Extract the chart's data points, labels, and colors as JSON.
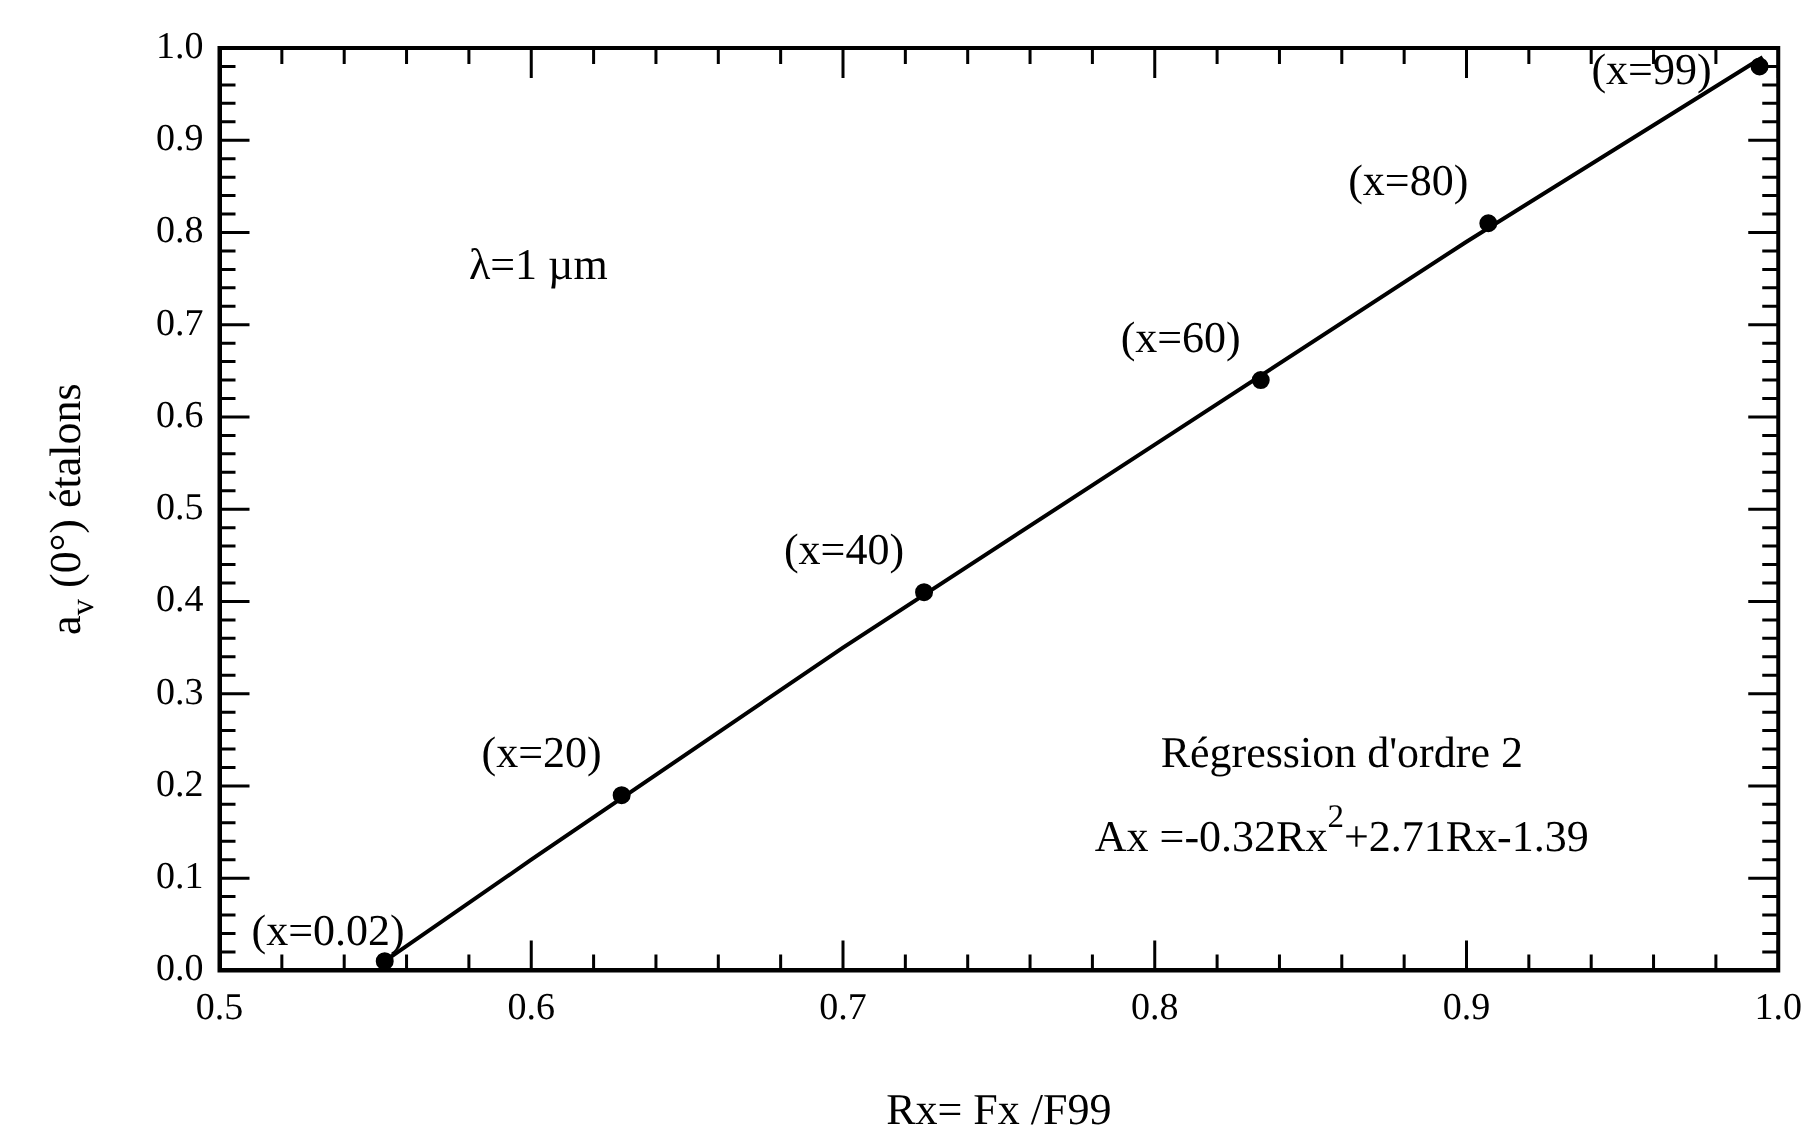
{
  "chart_data": {
    "type": "scatter",
    "xlabel": "Rx= Fx /F99",
    "ylabel": "a$_{v}$ (0°) étalons",
    "xlim": [
      0.5,
      1.0
    ],
    "ylim": [
      0.0,
      1.0
    ],
    "xticks": [
      {
        "value": 0.5,
        "label": "0.5"
      },
      {
        "value": 0.52,
        "label": null
      },
      {
        "value": 0.54,
        "label": null
      },
      {
        "value": 0.56,
        "label": null
      },
      {
        "value": 0.58,
        "label": null
      },
      {
        "value": 0.6,
        "label": "0.6"
      },
      {
        "value": 0.62,
        "label": null
      },
      {
        "value": 0.64,
        "label": null
      },
      {
        "value": 0.66,
        "label": null
      },
      {
        "value": 0.68,
        "label": null
      },
      {
        "value": 0.7,
        "label": "0.7"
      },
      {
        "value": 0.72,
        "label": null
      },
      {
        "value": 0.74,
        "label": null
      },
      {
        "value": 0.76,
        "label": null
      },
      {
        "value": 0.78,
        "label": null
      },
      {
        "value": 0.8,
        "label": "0.8"
      },
      {
        "value": 0.82,
        "label": null
      },
      {
        "value": 0.84,
        "label": null
      },
      {
        "value": 0.86,
        "label": null
      },
      {
        "value": 0.88,
        "label": null
      },
      {
        "value": 0.9,
        "label": "0.9"
      },
      {
        "value": 0.92,
        "label": null
      },
      {
        "value": 0.94,
        "label": null
      },
      {
        "value": 0.96,
        "label": null
      },
      {
        "value": 0.98,
        "label": null
      },
      {
        "value": 1.0,
        "label": "1.0"
      }
    ],
    "yticks": [
      {
        "value": 0.0,
        "label": "0.0"
      },
      {
        "value": 0.02,
        "label": null
      },
      {
        "value": 0.04,
        "label": null
      },
      {
        "value": 0.06,
        "label": null
      },
      {
        "value": 0.08,
        "label": null
      },
      {
        "value": 0.1,
        "label": "0.1"
      },
      {
        "value": 0.12,
        "label": null
      },
      {
        "value": 0.14,
        "label": null
      },
      {
        "value": 0.16,
        "label": null
      },
      {
        "value": 0.18,
        "label": null
      },
      {
        "value": 0.2,
        "label": "0.2"
      },
      {
        "value": 0.22,
        "label": null
      },
      {
        "value": 0.24,
        "label": null
      },
      {
        "value": 0.26,
        "label": null
      },
      {
        "value": 0.28,
        "label": null
      },
      {
        "value": 0.3,
        "label": "0.3"
      },
      {
        "value": 0.32,
        "label": null
      },
      {
        "value": 0.34,
        "label": null
      },
      {
        "value": 0.36,
        "label": null
      },
      {
        "value": 0.38,
        "label": null
      },
      {
        "value": 0.4,
        "label": "0.4"
      },
      {
        "value": 0.42,
        "label": null
      },
      {
        "value": 0.44,
        "label": null
      },
      {
        "value": 0.46,
        "label": null
      },
      {
        "value": 0.48,
        "label": null
      },
      {
        "value": 0.5,
        "label": "0.5"
      },
      {
        "value": 0.52,
        "label": null
      },
      {
        "value": 0.54,
        "label": null
      },
      {
        "value": 0.56,
        "label": null
      },
      {
        "value": 0.58,
        "label": null
      },
      {
        "value": 0.6,
        "label": "0.6"
      },
      {
        "value": 0.62,
        "label": null
      },
      {
        "value": 0.64,
        "label": null
      },
      {
        "value": 0.66,
        "label": null
      },
      {
        "value": 0.68,
        "label": null
      },
      {
        "value": 0.7,
        "label": "0.7"
      },
      {
        "value": 0.72,
        "label": null
      },
      {
        "value": 0.74,
        "label": null
      },
      {
        "value": 0.76,
        "label": null
      },
      {
        "value": 0.78,
        "label": null
      },
      {
        "value": 0.8,
        "label": "0.8"
      },
      {
        "value": 0.82,
        "label": null
      },
      {
        "value": 0.84,
        "label": null
      },
      {
        "value": 0.86,
        "label": null
      },
      {
        "value": 0.88,
        "label": null
      },
      {
        "value": 0.9,
        "label": "0.9"
      },
      {
        "value": 0.92,
        "label": null
      },
      {
        "value": 0.94,
        "label": null
      },
      {
        "value": 0.96,
        "label": null
      },
      {
        "value": 0.98,
        "label": null
      },
      {
        "value": 1.0,
        "label": "1.0"
      }
    ],
    "grid": false,
    "legend": false,
    "series": [
      {
        "type": "scatter",
        "color": "#000000",
        "marker": "circle",
        "x": [
          0.553,
          0.629,
          0.726,
          0.834,
          0.907,
          0.994
        ],
        "values": [
          0.01,
          0.19,
          0.41,
          0.64,
          0.81,
          0.98
        ]
      },
      {
        "type": "line",
        "color": "#000000",
        "marker": "none",
        "line_style": "solid",
        "x": [
          0.553,
          0.6,
          0.7,
          0.8,
          0.9,
          0.995
        ],
        "values": [
          0.01,
          0.12,
          0.35,
          0.57,
          0.79,
          0.99
        ]
      }
    ],
    "annotations": [
      {
        "text": "(x=0.02)",
        "x": 0.553,
        "y": 0.01
      },
      {
        "text": "(x=20)",
        "x": 0.629,
        "y": 0.19
      },
      {
        "text": "(x=40)",
        "x": 0.726,
        "y": 0.41
      },
      {
        "text": "(x=60)",
        "x": 0.834,
        "y": 0.64
      },
      {
        "text": "(x=80)",
        "x": 0.907,
        "y": 0.81
      },
      {
        "text": "(x=99)",
        "x": 0.994,
        "y": 0.98
      },
      "λ=1 µm",
      "Régression d'ordre 2",
      "Ax =-0.32Rx$^{2}$+2.71Rx-1.39"
    ]
  }
}
